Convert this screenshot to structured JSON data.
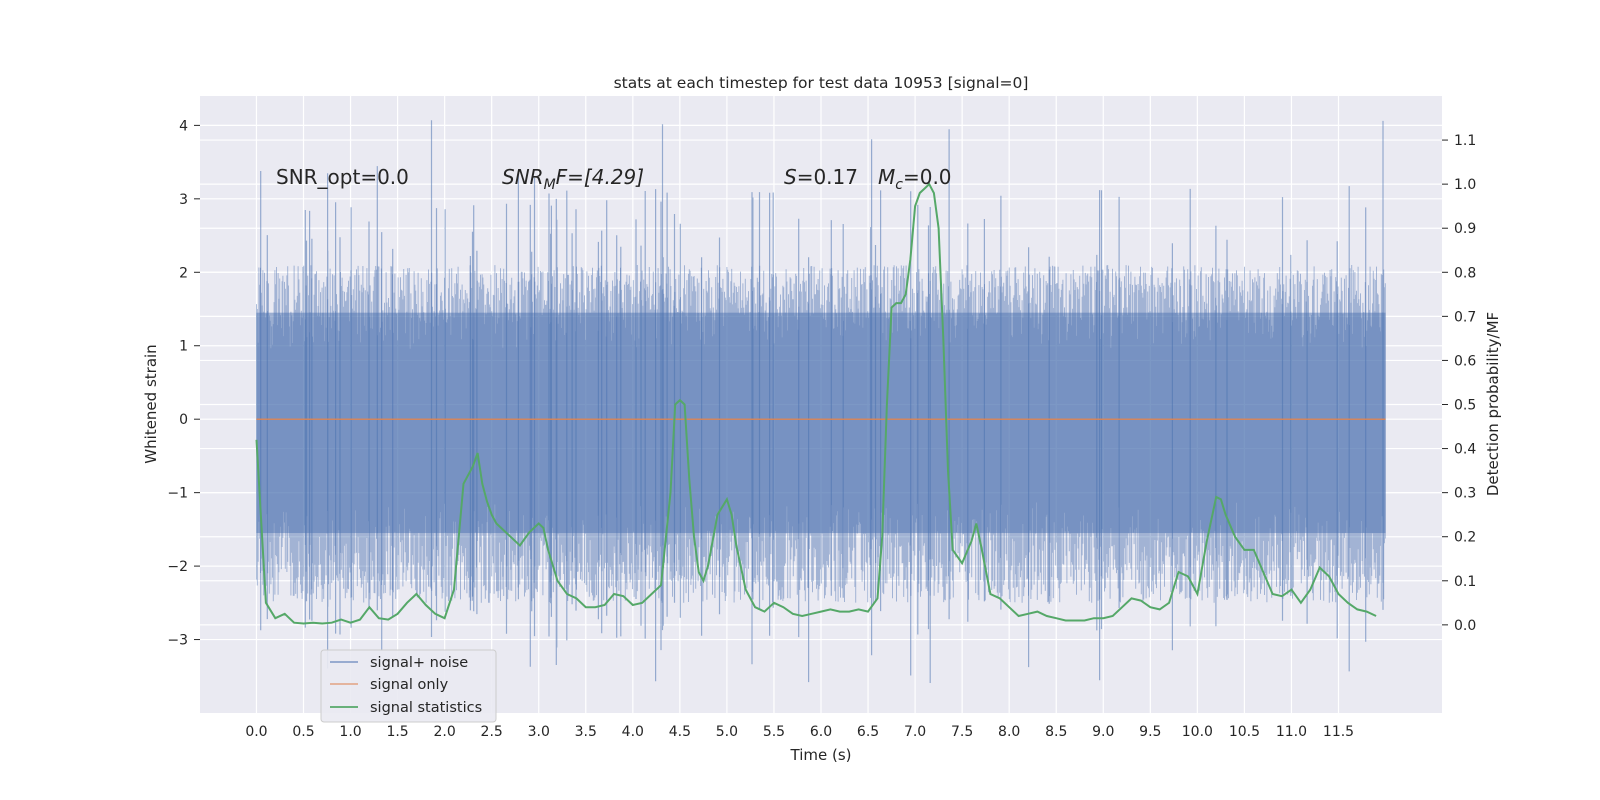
{
  "chart_data": {
    "type": "line",
    "title": "stats at each timestep for test data 10953 [signal=0]",
    "xlabel": "Time (s)",
    "ylabel_left": "Whitened strain",
    "ylabel_right": "Detection probability/MF",
    "xlim": [
      -0.6,
      12.6
    ],
    "ylim_left": [
      -4.0,
      4.4
    ],
    "ylim_right": [
      -0.2,
      1.2
    ],
    "x_ticks": [
      "0.0",
      "0.5",
      "1.0",
      "1.5",
      "2.0",
      "2.5",
      "3.0",
      "3.5",
      "4.0",
      "4.5",
      "5.0",
      "5.5",
      "6.0",
      "6.5",
      "7.0",
      "7.5",
      "8.0",
      "8.5",
      "9.0",
      "9.5",
      "10.0",
      "10.5",
      "11.0",
      "11.5"
    ],
    "y_ticks_left": [
      4,
      3,
      2,
      1,
      0,
      -1,
      -2,
      -3
    ],
    "y_tick_labels_left": [
      "4",
      "3",
      "2",
      "1",
      "0",
      "−1",
      "−2",
      "−3"
    ],
    "y_ticks_right": [
      1.1,
      1.0,
      0.9,
      0.8,
      0.7,
      0.6,
      0.5,
      0.4,
      0.3,
      0.2,
      0.1,
      0.0
    ],
    "y_tick_labels_right": [
      "1.1",
      "1.0",
      "0.9",
      "0.8",
      "0.7",
      "0.6",
      "0.5",
      "0.4",
      "0.3",
      "0.2",
      "0.1",
      "0.0"
    ],
    "grid": true,
    "legend_position": "lower-left",
    "annotations": {
      "snr_opt": "SNR_opt=0.0",
      "snr_mf_var": "SNR",
      "snr_mf_sub": "M",
      "snr_mf_tail": "F=[4.29]",
      "s_var": "S",
      "s_val": "=0.17",
      "mc_var": "M",
      "mc_sub": "c",
      "mc_val": "=0.0"
    },
    "series": [
      {
        "name": "signal+ noise",
        "color": "#4c72b0",
        "x_range": [
          0.0,
          12.0
        ],
        "band_lower": -2.5,
        "band_upper": 2.1,
        "peak_max": 4.1,
        "peak_min": -3.6,
        "note_shape": "dense noise band"
      },
      {
        "name": "signal only",
        "color": "#dd8452",
        "x": [
          0.0,
          12.0
        ],
        "y": [
          0.0,
          0.0
        ]
      },
      {
        "name": "signal statistics",
        "color": "#55a868",
        "axis": "right",
        "x": [
          0.0,
          0.1,
          0.2,
          0.3,
          0.4,
          0.5,
          0.6,
          0.7,
          0.8,
          0.9,
          1.0,
          1.1,
          1.2,
          1.3,
          1.4,
          1.5,
          1.6,
          1.7,
          1.8,
          1.9,
          2.0,
          2.1,
          2.2,
          2.3,
          2.35,
          2.4,
          2.45,
          2.5,
          2.55,
          2.6,
          2.7,
          2.8,
          2.9,
          3.0,
          3.05,
          3.1,
          3.2,
          3.3,
          3.4,
          3.5,
          3.6,
          3.7,
          3.8,
          3.9,
          4.0,
          4.1,
          4.2,
          4.3,
          4.4,
          4.45,
          4.5,
          4.55,
          4.6,
          4.65,
          4.7,
          4.75,
          4.8,
          4.9,
          5.0,
          5.05,
          5.1,
          5.2,
          5.3,
          5.4,
          5.5,
          5.6,
          5.7,
          5.8,
          5.9,
          6.0,
          6.1,
          6.2,
          6.3,
          6.4,
          6.5,
          6.6,
          6.65,
          6.7,
          6.75,
          6.8,
          6.85,
          6.9,
          6.95,
          7.0,
          7.05,
          7.1,
          7.15,
          7.2,
          7.25,
          7.3,
          7.35,
          7.4,
          7.5,
          7.6,
          7.65,
          7.7,
          7.8,
          7.9,
          8.0,
          8.1,
          8.2,
          8.3,
          8.4,
          8.5,
          8.6,
          8.7,
          8.8,
          8.9,
          9.0,
          9.1,
          9.2,
          9.3,
          9.4,
          9.5,
          9.6,
          9.7,
          9.8,
          9.9,
          10.0,
          10.1,
          10.2,
          10.25,
          10.3,
          10.4,
          10.5,
          10.6,
          10.7,
          10.8,
          10.9,
          11.0,
          11.1,
          11.2,
          11.3,
          11.4,
          11.5,
          11.6,
          11.7,
          11.8,
          11.9
        ],
        "y": [
          0.42,
          0.05,
          0.015,
          0.025,
          0.005,
          0.003,
          0.005,
          0.003,
          0.005,
          0.012,
          0.005,
          0.012,
          0.04,
          0.015,
          0.012,
          0.025,
          0.05,
          0.07,
          0.045,
          0.025,
          0.015,
          0.08,
          0.32,
          0.36,
          0.39,
          0.32,
          0.28,
          0.25,
          0.23,
          0.22,
          0.2,
          0.18,
          0.21,
          0.23,
          0.22,
          0.17,
          0.1,
          0.07,
          0.06,
          0.04,
          0.04,
          0.045,
          0.07,
          0.065,
          0.045,
          0.05,
          0.07,
          0.09,
          0.3,
          0.5,
          0.51,
          0.5,
          0.33,
          0.2,
          0.12,
          0.1,
          0.135,
          0.25,
          0.285,
          0.25,
          0.18,
          0.08,
          0.04,
          0.03,
          0.05,
          0.04,
          0.025,
          0.02,
          0.025,
          0.03,
          0.035,
          0.03,
          0.03,
          0.035,
          0.03,
          0.06,
          0.2,
          0.5,
          0.72,
          0.73,
          0.73,
          0.75,
          0.83,
          0.95,
          0.98,
          0.99,
          1.0,
          0.98,
          0.9,
          0.65,
          0.35,
          0.17,
          0.14,
          0.19,
          0.23,
          0.18,
          0.07,
          0.06,
          0.04,
          0.02,
          0.025,
          0.03,
          0.02,
          0.015,
          0.01,
          0.01,
          0.01,
          0.015,
          0.015,
          0.02,
          0.04,
          0.06,
          0.055,
          0.04,
          0.035,
          0.05,
          0.12,
          0.11,
          0.07,
          0.19,
          0.29,
          0.285,
          0.25,
          0.2,
          0.17,
          0.17,
          0.12,
          0.07,
          0.065,
          0.08,
          0.05,
          0.08,
          0.13,
          0.11,
          0.07,
          0.05,
          0.035,
          0.03,
          0.02
        ]
      }
    ]
  }
}
